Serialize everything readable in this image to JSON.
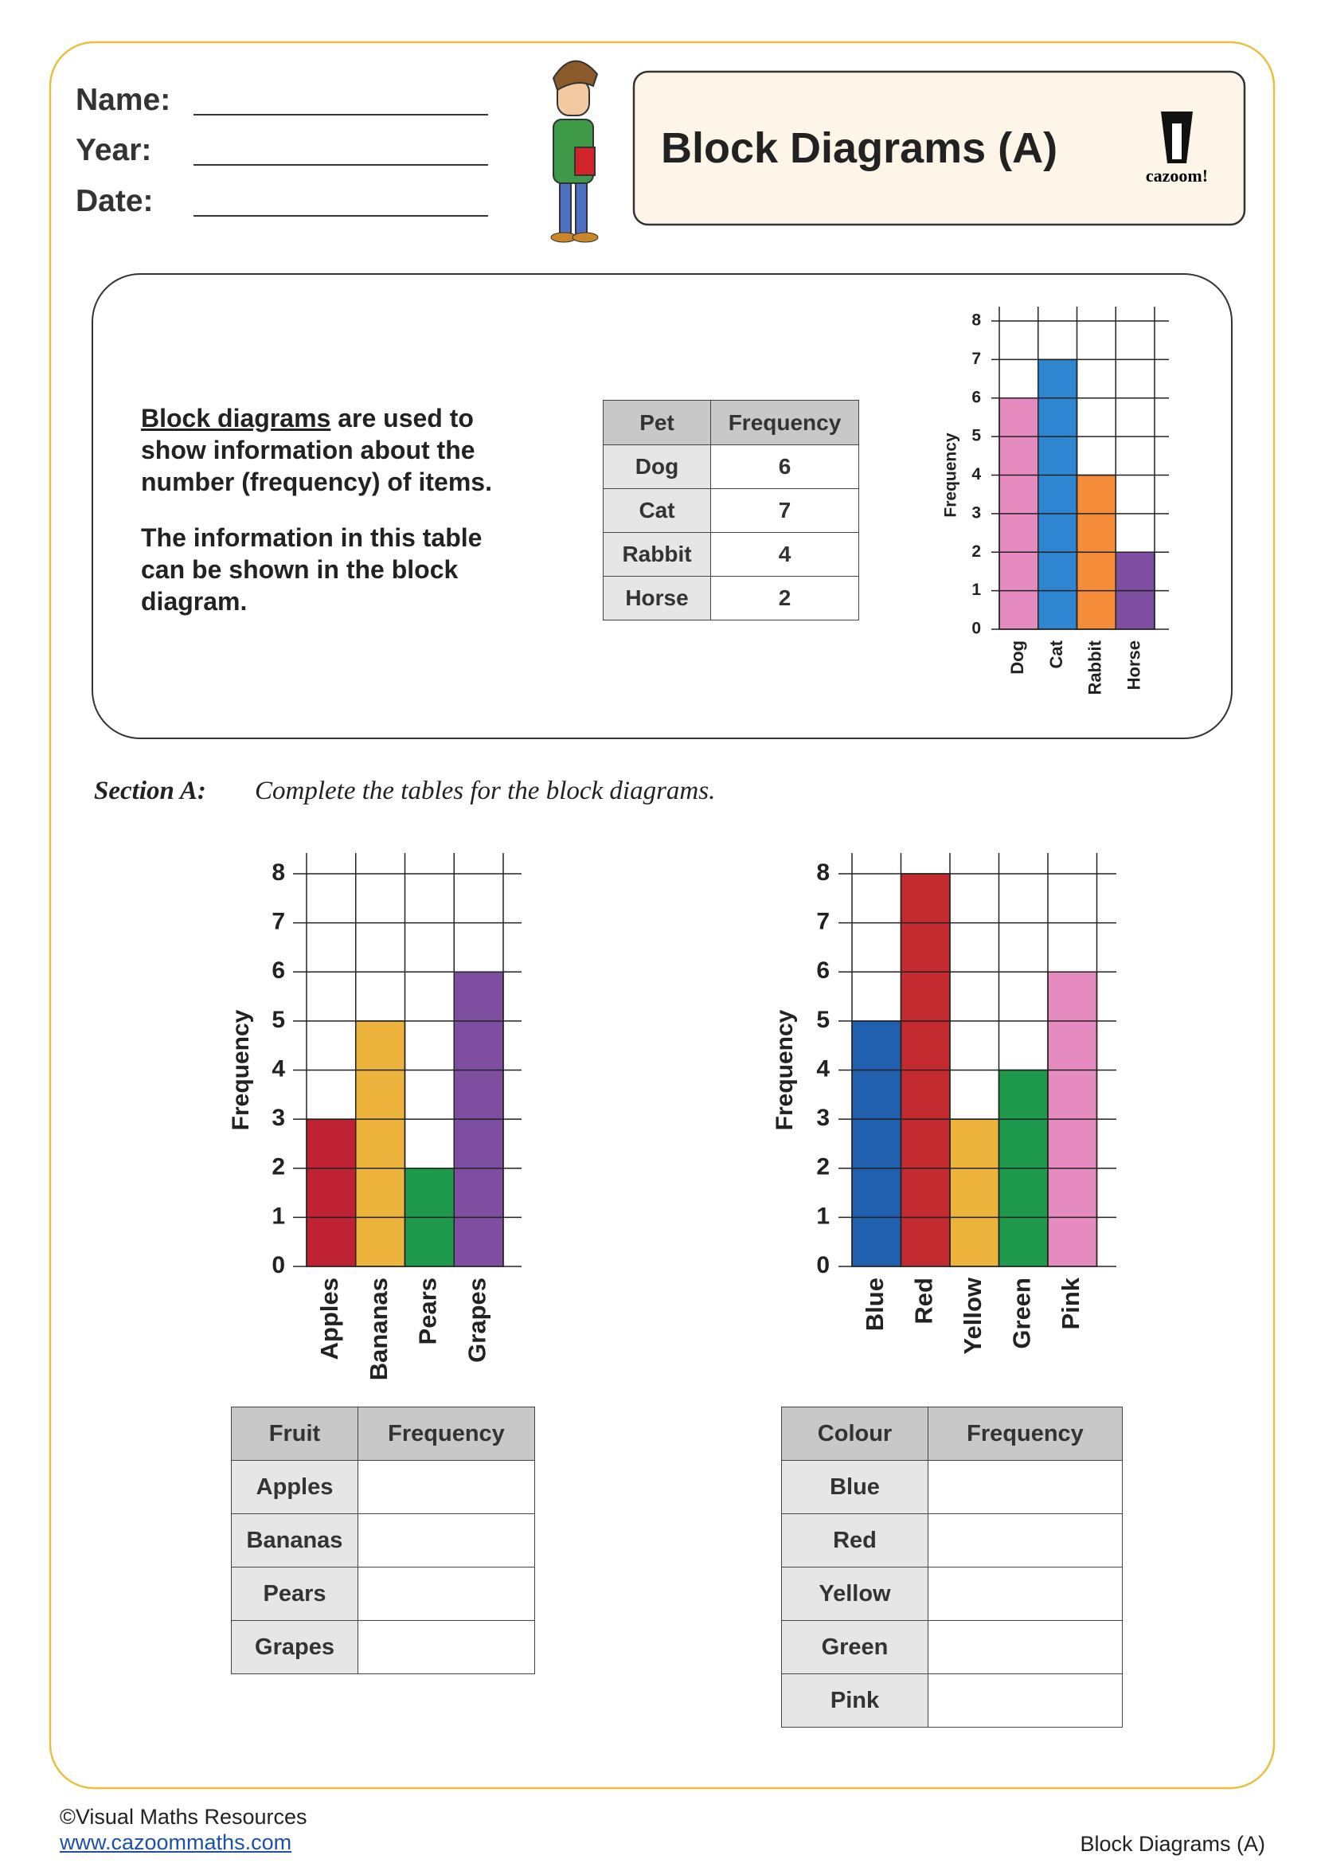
{
  "header": {
    "labels": [
      "Name:",
      "Year:",
      "Date:"
    ],
    "title": "Block Diagrams (A)",
    "logo": "cazoom!"
  },
  "intro": {
    "term": "Block diagrams",
    "text1": "are used to show information about the number (frequency) of items.",
    "text2": "The information in this table can be shown in the block diagram."
  },
  "example_table": {
    "header": [
      "Pet",
      "Frequency"
    ],
    "rows": [
      [
        "Dog",
        6
      ],
      [
        "Cat",
        7
      ],
      [
        "Rabbit",
        4
      ],
      [
        "Horse",
        2
      ]
    ]
  },
  "section": {
    "label": "Section A:",
    "instruction": "Complete the tables for the block diagrams."
  },
  "chart_data": [
    {
      "type": "bar",
      "y_label": "Frequency",
      "categories": [
        "Dog",
        "Cat",
        "Rabbit",
        "Horse"
      ],
      "values": [
        6,
        7,
        4,
        2
      ],
      "colors": [
        "#e58bbf",
        "#2e86d0",
        "#f48c3a",
        "#7e4fa0"
      ],
      "ylim": [
        0,
        8
      ],
      "yticks": [
        0,
        1,
        2,
        3,
        4,
        5,
        6,
        7,
        8
      ],
      "grid": true
    },
    {
      "type": "bar",
      "y_label": "Frequency",
      "categories": [
        "Apples",
        "Bananas",
        "Pears",
        "Grapes"
      ],
      "values": [
        3,
        5,
        2,
        6
      ],
      "colors": [
        "#bf2233",
        "#ecb43d",
        "#1f9a4d",
        "#7e4fa0"
      ],
      "ylim": [
        0,
        8
      ],
      "yticks": [
        0,
        1,
        2,
        3,
        4,
        5,
        6,
        7,
        8
      ],
      "grid": true
    },
    {
      "type": "bar",
      "y_label": "Frequency",
      "categories": [
        "Blue",
        "Red",
        "Yellow",
        "Green",
        "Pink"
      ],
      "values": [
        5,
        8,
        3,
        4,
        6
      ],
      "colors": [
        "#2160ae",
        "#c42b30",
        "#ecb43d",
        "#1f9a4d",
        "#e58bbf"
      ],
      "ylim": [
        0,
        8
      ],
      "yticks": [
        0,
        1,
        2,
        3,
        4,
        5,
        6,
        7,
        8
      ],
      "grid": true
    }
  ],
  "answer_tables": [
    {
      "header": [
        "Fruit",
        "Frequency"
      ],
      "rows": [
        "Apples",
        "Bananas",
        "Pears",
        "Grapes"
      ]
    },
    {
      "header": [
        "Colour",
        "Frequency"
      ],
      "rows": [
        "Blue",
        "Red",
        "Yellow",
        "Green",
        "Pink"
      ]
    }
  ],
  "footer": {
    "copyright": "©Visual Maths Resources",
    "url": "www.cazoommaths.com",
    "title": "Block Diagrams (A)"
  }
}
